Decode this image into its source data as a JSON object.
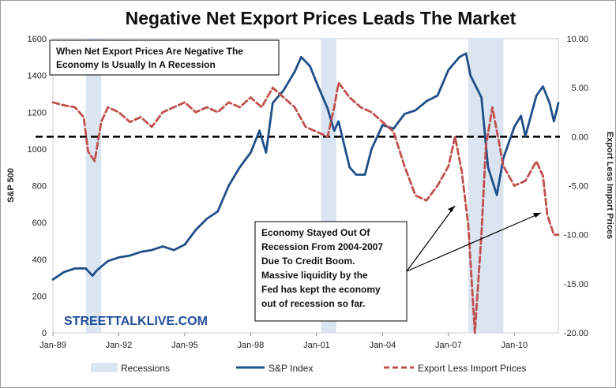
{
  "chart_data": {
    "type": "line",
    "title": "Negative Net Export Prices Leads The Market",
    "ylabel_left": "S&P 500",
    "ylabel_right": "Export Less Import Prices",
    "xlabel": "",
    "ylim_left": [
      0,
      1600
    ],
    "ylim_right": [
      -20,
      10
    ],
    "xlim": [
      1989.0,
      2012.0
    ],
    "y_ticks_left": [
      0,
      200,
      400,
      600,
      800,
      1000,
      1200,
      1400,
      1600
    ],
    "y_ticks_left_labels": [
      "0",
      "200",
      "400",
      "600",
      "800",
      "1000",
      "1200",
      "1400",
      "1600"
    ],
    "y_ticks_right": [
      10,
      5,
      0,
      -5,
      -10,
      -15,
      -20
    ],
    "y_ticks_right_labels": [
      "10.00",
      "5.00",
      "0.00",
      "-5.00",
      "-10.00",
      "-15.00",
      "-20.00"
    ],
    "x_ticks": [
      1989,
      1992,
      1995,
      1998,
      2001,
      2004,
      2007,
      2010
    ],
    "x_tick_labels": [
      "Jan-89",
      "Jan-92",
      "Jan-95",
      "Jan-98",
      "Jan-01",
      "Jan-04",
      "Jan-07",
      "Jan-10"
    ],
    "zero_line_right": 0,
    "recessions": [
      [
        1990.5,
        1991.2
      ],
      [
        2001.2,
        2001.9
      ],
      [
        2007.9,
        2009.5
      ]
    ],
    "series": [
      {
        "name": "S&P Index",
        "color": "#1f4e88",
        "style": "solid",
        "axis": "left",
        "x": [
          1989.0,
          1989.5,
          1990.0,
          1990.5,
          1990.8,
          1991.0,
          1991.5,
          1992.0,
          1992.5,
          1993.0,
          1993.5,
          1994.0,
          1994.5,
          1995.0,
          1995.5,
          1996.0,
          1996.5,
          1997.0,
          1997.5,
          1998.0,
          1998.4,
          1998.7,
          1999.0,
          1999.5,
          2000.0,
          2000.3,
          2000.7,
          2001.0,
          2001.5,
          2001.8,
          2002.0,
          2002.5,
          2002.8,
          2003.2,
          2003.5,
          2004.0,
          2004.5,
          2005.0,
          2005.5,
          2006.0,
          2006.5,
          2007.0,
          2007.5,
          2007.8,
          2008.0,
          2008.5,
          2008.8,
          2009.2,
          2009.5,
          2010.0,
          2010.3,
          2010.5,
          2011.0,
          2011.3,
          2011.6,
          2011.8,
          2012.0
        ],
        "values": [
          290,
          330,
          350,
          350,
          310,
          340,
          390,
          410,
          420,
          440,
          450,
          470,
          450,
          480,
          560,
          620,
          660,
          800,
          900,
          980,
          1100,
          980,
          1250,
          1320,
          1420,
          1500,
          1450,
          1360,
          1220,
          1100,
          1150,
          900,
          860,
          860,
          1000,
          1130,
          1110,
          1190,
          1210,
          1260,
          1290,
          1430,
          1500,
          1520,
          1400,
          1280,
          900,
          750,
          950,
          1120,
          1180,
          1070,
          1290,
          1340,
          1250,
          1150,
          1250
        ]
      },
      {
        "name": "Export Less Import Prices",
        "color": "#c0504d",
        "style": "dashed",
        "axis": "right",
        "x": [
          1989.0,
          1989.5,
          1990.0,
          1990.4,
          1990.6,
          1990.9,
          1991.2,
          1991.5,
          1992.0,
          1992.5,
          1993.0,
          1993.5,
          1994.0,
          1994.5,
          1995.0,
          1995.5,
          1996.0,
          1996.5,
          1997.0,
          1997.5,
          1998.0,
          1998.5,
          1999.0,
          1999.5,
          2000.0,
          2000.5,
          2001.0,
          2001.5,
          2001.8,
          2002.0,
          2002.5,
          2003.0,
          2003.5,
          2004.0,
          2004.5,
          2005.0,
          2005.5,
          2006.0,
          2006.5,
          2007.0,
          2007.3,
          2007.6,
          2007.9,
          2008.2,
          2008.5,
          2008.7,
          2009.0,
          2009.5,
          2010.0,
          2010.5,
          2011.0,
          2011.3,
          2011.5,
          2011.8,
          2012.0
        ],
        "values": [
          3.5,
          3.2,
          3.0,
          2.0,
          -1.5,
          -2.5,
          1.5,
          3.0,
          2.5,
          1.5,
          2.0,
          1.0,
          2.5,
          3.0,
          3.5,
          2.5,
          3.0,
          2.5,
          3.5,
          3.0,
          4.0,
          3.0,
          5.0,
          4.0,
          3.0,
          1.0,
          0.5,
          0.0,
          3.0,
          5.5,
          4.0,
          3.0,
          2.5,
          1.5,
          0.5,
          -3.0,
          -6.0,
          -6.5,
          -5.0,
          -3.0,
          0.0,
          -3.5,
          -9.0,
          -20.0,
          -10.0,
          -1.0,
          3.0,
          -3.0,
          -5.0,
          -4.5,
          -2.5,
          -4.0,
          -8.0,
          -10.0,
          -10.0
        ]
      }
    ],
    "legend": [
      "Recessions",
      "S&P Index",
      "Export Less Import Prices"
    ],
    "legend_position": "bottom",
    "annotations": {
      "box1": [
        "When Net Export Prices Are Negative The",
        "Economy Is Usually In A Recession"
      ],
      "box2": [
        "Economy Stayed Out Of",
        "Recession From 2004-2007",
        "Due To Credit Boom.",
        "Massive liquidity by the",
        "Fed  has kept the economy",
        "out of recession so far."
      ],
      "brand": "STREETTALKLIVE.COM"
    },
    "colors": {
      "recession_band": "#dbe5f1",
      "zero_line": "#000000",
      "brand": "#1f4e9c"
    }
  }
}
